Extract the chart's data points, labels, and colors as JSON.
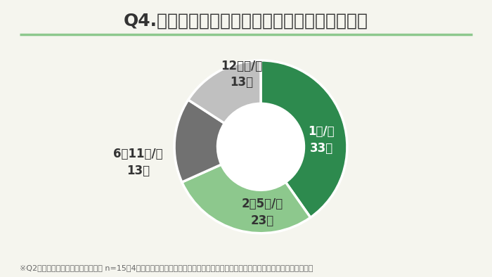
{
  "title": "Q4.頻度別に来院事業者の人数をお答えください",
  "title_fontsize": 18,
  "footnote": "※Q2で「はい」と答えた病院が対象 n=15　4つの頻度別に来院事業者の人数を回答（複数回答）事業者の可能性がある人物も含む",
  "label_line1": [
    "1回/年",
    "2〜5回/年",
    "6〜11回/年",
    "12回〜/年"
  ],
  "label_line2": [
    "33人",
    "23人",
    "13人",
    "13人"
  ],
  "values": [
    33,
    23,
    13,
    13
  ],
  "colors": [
    "#2d8a4e",
    "#8dc88d",
    "#717171",
    "#c0c0c0"
  ],
  "background_color": "#f5f5ee",
  "label_fontsize": 12,
  "title_color": "#333333",
  "footnote_fontsize": 8,
  "underline_color": "#8dc88d",
  "donut_width": 0.5
}
